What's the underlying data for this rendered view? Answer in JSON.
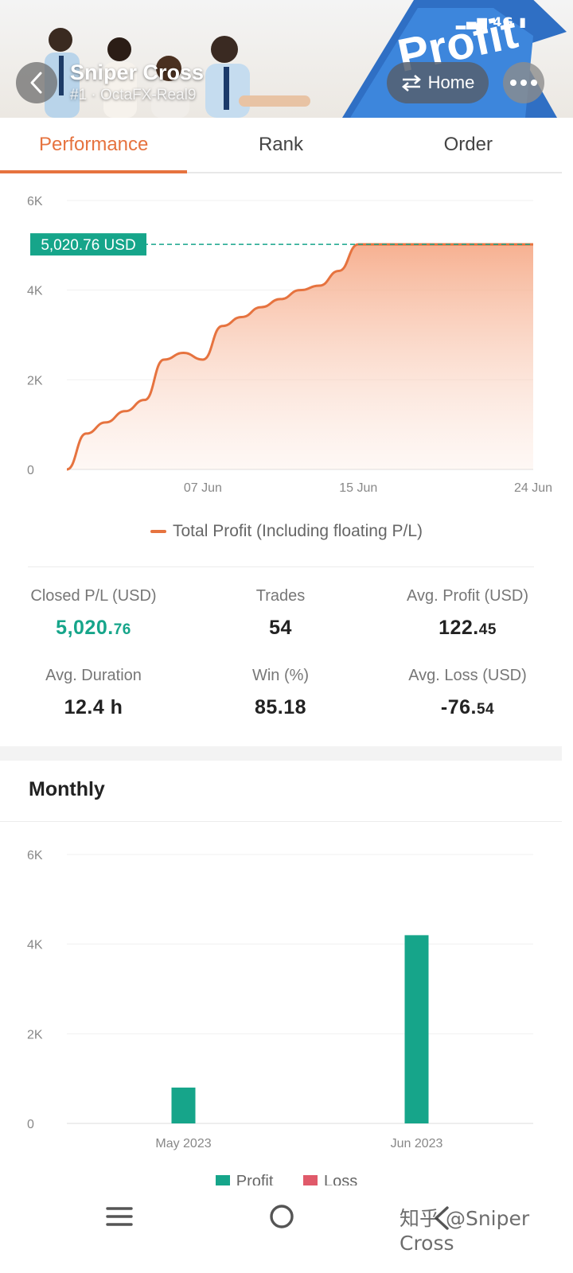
{
  "header": {
    "title": "Sniper Cross",
    "subtitle": "#1 · OctaFX-Real9",
    "home_label": "Home",
    "banner_text": "Profit",
    "status": "4G"
  },
  "tabs": [
    {
      "label": "Performance",
      "active": true
    },
    {
      "label": "Rank",
      "active": false
    },
    {
      "label": "Order",
      "active": false
    }
  ],
  "performance_chart": {
    "current_label": "5,020.76 USD",
    "legend": "Total Profit (Including floating P/L)"
  },
  "stats": {
    "closed_pl_label": "Closed P/L (USD)",
    "closed_pl_int": "5,020.",
    "closed_pl_dec": "76",
    "trades_label": "Trades",
    "trades_value": "54",
    "avg_profit_label": "Avg. Profit (USD)",
    "avg_profit_int": "122.",
    "avg_profit_dec": "45",
    "avg_duration_label": "Avg. Duration",
    "avg_duration_value": "12.4 h",
    "win_label": "Win (%)",
    "win_value": "85.18",
    "avg_loss_label": "Avg. Loss (USD)",
    "avg_loss_int": "-76.",
    "avg_loss_dec": "54"
  },
  "monthly": {
    "title": "Monthly",
    "legend_profit": "Profit",
    "legend_loss": "Loss"
  },
  "watermark": "知乎 @Sniper Cross",
  "colors": {
    "accent": "#e6733f",
    "profit": "#16a58a",
    "loss": "#e05a6a",
    "tab_text": "#444444"
  },
  "chart_data": [
    {
      "type": "area",
      "title": "",
      "series": [
        {
          "name": "Total Profit (Including floating P/L)",
          "x": [
            "May 31",
            "Jun 1",
            "Jun 2",
            "Jun 3",
            "Jun 4",
            "Jun 5",
            "Jun 6",
            "Jun 7",
            "Jun 8",
            "Jun 9",
            "Jun 10",
            "Jun 11",
            "Jun 12",
            "Jun 13",
            "Jun 14",
            "Jun 15",
            "Jun 16",
            "Jun 17",
            "Jun 18",
            "Jun 19",
            "Jun 20",
            "Jun 21",
            "Jun 22",
            "Jun 23",
            "Jun 24"
          ],
          "values": [
            0,
            800,
            1050,
            1300,
            1550,
            2450,
            2600,
            2450,
            3200,
            3400,
            3620,
            3800,
            4000,
            4100,
            4430,
            5020.76,
            5020.76,
            5020.76,
            5020.76,
            5020.76,
            5020.76,
            5020.76,
            5020.76,
            5020.76,
            5020.76
          ]
        }
      ],
      "x_tick_labels": [
        "07 Jun",
        "15 Jun",
        "24 Jun"
      ],
      "y_tick_labels": [
        "0",
        "2K",
        "4K",
        "6K"
      ],
      "ylim": [
        0,
        6000
      ],
      "reference_line": 5020.76,
      "legend_position": "bottom",
      "grid": true
    },
    {
      "type": "bar",
      "title": "",
      "categories": [
        "May 2023",
        "Jun 2023"
      ],
      "series": [
        {
          "name": "Profit",
          "values": [
            800,
            4200
          ]
        },
        {
          "name": "Loss",
          "values": [
            0,
            0
          ]
        }
      ],
      "y_tick_labels": [
        "0",
        "2K",
        "4K",
        "6K"
      ],
      "ylim": [
        0,
        6000
      ],
      "legend_position": "bottom",
      "grid": true
    }
  ]
}
